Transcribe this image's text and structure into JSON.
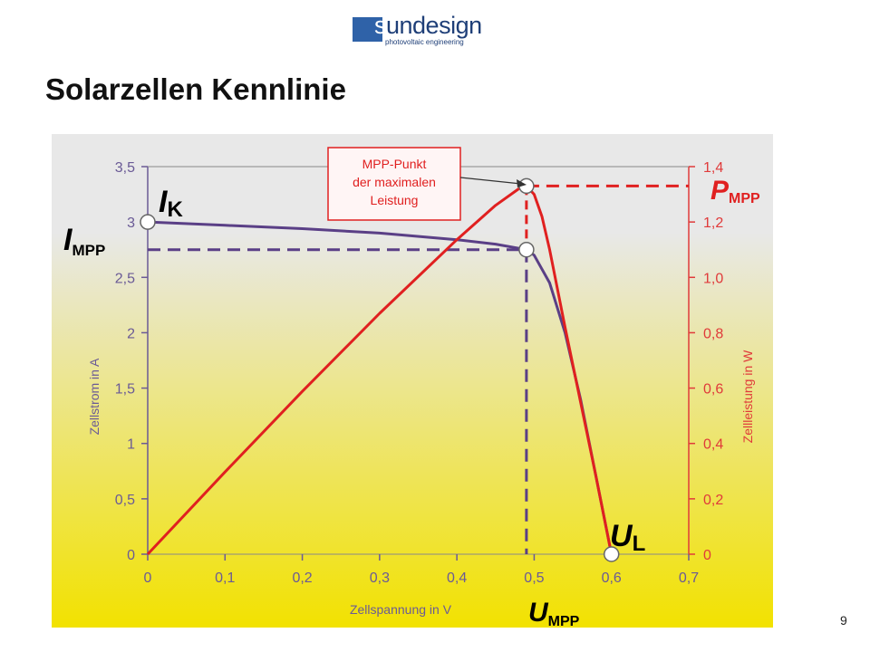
{
  "logo": {
    "letter": "s",
    "word": "undesign",
    "tagline": "photovoltaic engineering"
  },
  "page": {
    "title": "Solarzellen Kennlinie",
    "number": "9"
  },
  "colors": {
    "current_curve": "#5a3f86",
    "power_curve": "#e02020",
    "left_axis": "#6a5a96",
    "right_axis": "#e03a3a",
    "bg_top": "#e8e8e8",
    "bg_bottom": "#f2e200"
  },
  "chart_data": {
    "type": "line",
    "xlabel": "Zellspannung in V",
    "ylabel": "Zellstrom in A",
    "y2label": "Zellleistung in W",
    "xlim": [
      0,
      0.7
    ],
    "ylim": [
      0,
      3.5
    ],
    "y2lim": [
      0,
      1.4
    ],
    "x_ticks": [
      "0",
      "0,1",
      "0,2",
      "0,3",
      "0,4",
      "0,5",
      "0,6",
      "0,7"
    ],
    "y_ticks": [
      "0",
      "0,5",
      "1",
      "1,5",
      "2",
      "2,5",
      "3",
      "3,5"
    ],
    "y2_ticks": [
      "0",
      "0,2",
      "0,4",
      "0,6",
      "0,8",
      "1,0",
      "1,2",
      "1,4"
    ],
    "grid": false,
    "series": [
      {
        "axis": "left",
        "x": [
          0,
          0.1,
          0.2,
          0.3,
          0.4,
          0.45,
          0.49,
          0.5,
          0.52,
          0.54,
          0.56,
          0.58,
          0.6
        ],
        "y": [
          3.0,
          2.97,
          2.94,
          2.9,
          2.84,
          2.8,
          2.75,
          2.7,
          2.45,
          2.0,
          1.4,
          0.7,
          0.0
        ]
      },
      {
        "axis": "right",
        "x": [
          0,
          0.1,
          0.2,
          0.3,
          0.4,
          0.45,
          0.48,
          0.49,
          0.5,
          0.51,
          0.52,
          0.54,
          0.56,
          0.58,
          0.6
        ],
        "y": [
          0,
          0.297,
          0.588,
          0.87,
          1.136,
          1.26,
          1.32,
          1.33,
          1.3,
          1.22,
          1.1,
          0.82,
          0.55,
          0.28,
          0.0
        ]
      }
    ],
    "markers": [
      {
        "label": "I",
        "sub": "K",
        "x": 0,
        "y": 3.0,
        "axis": "left"
      },
      {
        "label": "U",
        "sub": "L",
        "x": 0.6,
        "y": 0.0,
        "axis": "left"
      }
    ],
    "mpp": {
      "x": 0.49,
      "current": 2.75,
      "power": 1.33
    },
    "annotations": {
      "i_mpp": {
        "main": "I",
        "sub": "MPP"
      },
      "p_mpp": {
        "main": "P",
        "sub": "MPP"
      },
      "u_mpp": {
        "main": "U",
        "sub": "MPP"
      },
      "callout": [
        "MPP-Punkt",
        "der maximalen",
        "Leistung"
      ]
    }
  }
}
